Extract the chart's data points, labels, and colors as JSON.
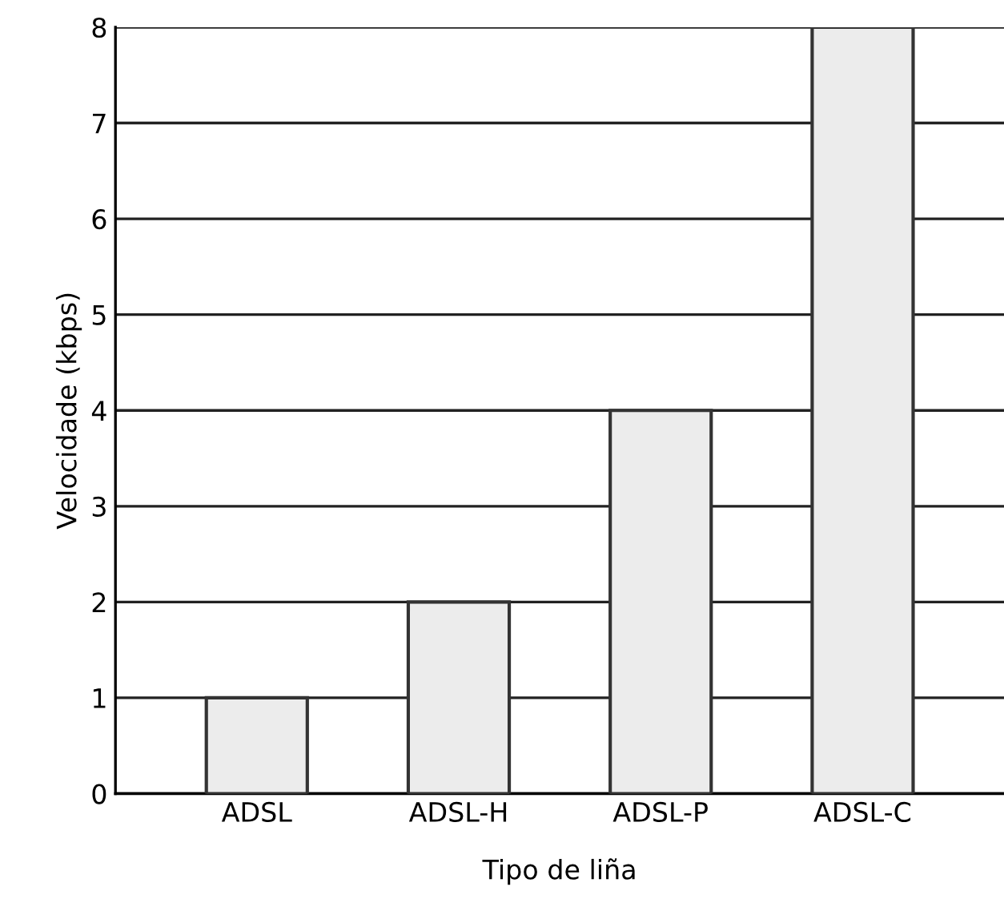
{
  "chart_data": {
    "type": "bar",
    "xlabel": "Tipo de liña",
    "ylabel": "Velocidade (kbps)",
    "categories": [
      "ADSL",
      "ADSL-H",
      "ADSL-P",
      "ADSL-C"
    ],
    "values": [
      1,
      2,
      4,
      8
    ],
    "color": "#ececec",
    "ylim": [
      0,
      8
    ],
    "yticks": [
      0,
      1,
      2,
      3,
      4,
      5,
      6,
      7,
      8
    ],
    "grid": "y"
  }
}
